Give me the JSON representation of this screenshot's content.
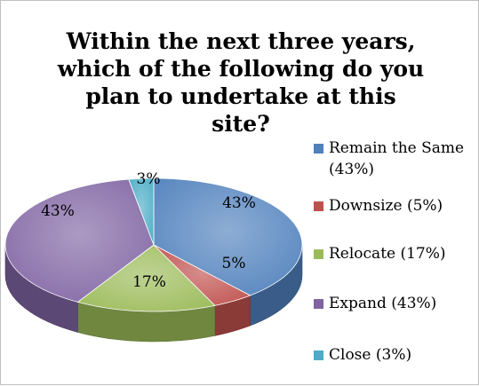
{
  "chart_data": {
    "type": "pie",
    "title": "Within the next three years,\nwhich of the following do you\nplan to undertake at this site?",
    "slices": [
      {
        "label": "Remain the Same (43%)",
        "value": 43,
        "data_label": "43%",
        "color": "#4F81BD"
      },
      {
        "label": "Downsize (5%)",
        "value": 5,
        "data_label": "5%",
        "color": "#C0504D"
      },
      {
        "label": "Relocate (17%)",
        "value": 17,
        "data_label": "17%",
        "color": "#9BBB59"
      },
      {
        "label": "Expand (43%)",
        "value": 43,
        "data_label": "43%",
        "color": "#8064A2"
      },
      {
        "label": "Close (3%)",
        "value": 3,
        "data_label": "3%",
        "color": "#4BACC6"
      }
    ],
    "legend_position": "right",
    "style": "3d"
  }
}
